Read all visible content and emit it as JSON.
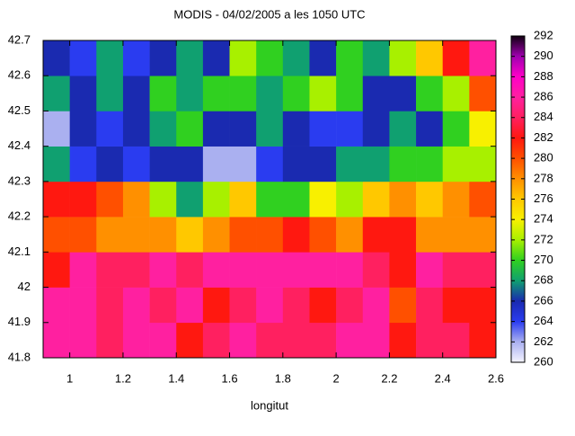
{
  "chart_data": {
    "type": "heatmap",
    "title": "MODIS - 04/02/2005 a les 1050 UTC",
    "xlabel": "longitut",
    "x": [
      0.95,
      1.05,
      1.15,
      1.25,
      1.35,
      1.45,
      1.55,
      1.65,
      1.75,
      1.85,
      1.95,
      2.05,
      2.15,
      2.25,
      2.35,
      2.45,
      2.55
    ],
    "y": [
      41.85,
      41.95,
      42.05,
      42.15,
      42.25,
      42.35,
      42.45,
      42.55,
      42.65
    ],
    "z": [
      [
        286,
        286,
        284,
        286,
        286,
        282,
        284,
        286,
        284,
        284,
        284,
        286,
        286,
        282,
        284,
        284,
        282
      ],
      [
        286,
        286,
        284,
        286,
        284,
        286,
        282,
        284,
        286,
        284,
        282,
        284,
        286,
        280,
        284,
        282,
        282
      ],
      [
        282,
        286,
        284,
        284,
        286,
        284,
        286,
        286,
        286,
        286,
        286,
        286,
        284,
        282,
        286,
        284,
        284
      ],
      [
        280,
        280,
        278,
        278,
        278,
        276,
        278,
        280,
        280,
        282,
        280,
        278,
        282,
        282,
        278,
        278,
        278
      ],
      [
        282,
        282,
        280,
        278,
        272,
        268,
        272,
        276,
        270,
        270,
        274,
        272,
        276,
        278,
        276,
        278,
        280
      ],
      [
        268,
        264,
        266,
        264,
        266,
        266,
        262,
        262,
        264,
        266,
        266,
        268,
        268,
        270,
        270,
        272,
        272
      ],
      [
        262,
        266,
        264,
        266,
        268,
        270,
        266,
        266,
        268,
        266,
        264,
        264,
        266,
        268,
        266,
        270,
        274
      ],
      [
        268,
        266,
        268,
        266,
        270,
        268,
        270,
        270,
        268,
        270,
        272,
        270,
        266,
        266,
        270,
        272,
        280
      ],
      [
        266,
        264,
        268,
        264,
        266,
        268,
        266,
        272,
        270,
        268,
        266,
        270,
        268,
        272,
        276,
        282,
        286
      ]
    ],
    "xlim": [
      0.9,
      2.6
    ],
    "xticks": [
      1,
      1.2,
      1.4,
      1.6,
      1.8,
      2,
      2.2,
      2.4,
      2.6
    ],
    "ylim": [
      41.8,
      42.7
    ],
    "yticks": [
      41.8,
      41.9,
      42,
      42.1,
      42.2,
      42.3,
      42.4,
      42.5,
      42.6,
      42.7
    ],
    "clim": [
      260,
      292
    ],
    "cticks": [
      260,
      262,
      264,
      266,
      268,
      270,
      272,
      274,
      276,
      278,
      280,
      282,
      284,
      286,
      288,
      290,
      292
    ],
    "colors": [
      "#f4f4ff",
      "#aab0f0",
      "#2a3cf0",
      "#1a2ab0",
      "#10a070",
      "#30d020",
      "#a8f000",
      "#f8f000",
      "#ffc800",
      "#ff9000",
      "#ff5000",
      "#ff1810",
      "#ff2060",
      "#ff20a0",
      "#ff00c8",
      "#a000b0",
      "#100010"
    ]
  }
}
